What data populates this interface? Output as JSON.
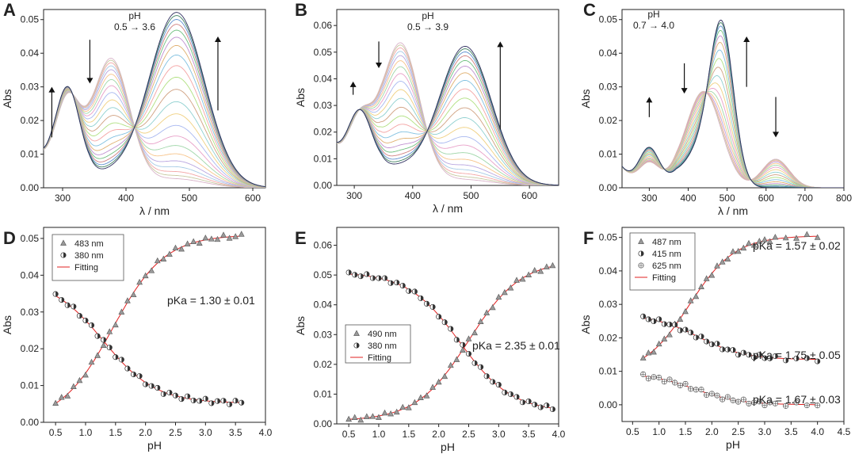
{
  "figure": {
    "panels": [
      {
        "letter": "A",
        "kind": "spectra",
        "xlabel": "λ / nm",
        "ylabel": "Abs",
        "xlim": [
          270,
          620
        ],
        "ylim": [
          0,
          0.053
        ],
        "xticks": [
          300,
          400,
          500,
          600
        ],
        "xtick_labels": [
          "300",
          "400",
          "500",
          "600"
        ],
        "yticks": [
          0,
          0.01,
          0.02,
          0.03,
          0.04,
          0.05
        ],
        "ytick_labels": [
          "0.00",
          "0.01",
          "0.02",
          "0.03",
          "0.04",
          "0.05"
        ],
        "ph_label": "pH",
        "ph_range": "0.5 → 3.6",
        "curve_count": 22,
        "acid": [
          {
            "c": 308,
            "w": 19,
            "a": 0.022
          },
          {
            "c": 377,
            "w": 29,
            "a": 0.0365
          },
          {
            "c": 480,
            "w": 44,
            "a": 0.0025
          }
        ],
        "base": [
          {
            "c": 308,
            "w": 19,
            "a": 0.026
          },
          {
            "c": 377,
            "w": 29,
            "a": 0.0015
          },
          {
            "c": 480,
            "w": 44,
            "a": 0.052
          }
        ],
        "baseline": 0.0075,
        "arrows": [
          {
            "x": 283,
            "y1": 0.015,
            "y2": 0.03
          },
          {
            "x": 343,
            "y1": 0.044,
            "y2": 0.031
          },
          {
            "x": 545,
            "y1": 0.023,
            "y2": 0.045
          }
        ]
      },
      {
        "letter": "B",
        "kind": "spectra",
        "xlabel": "λ / nm",
        "ylabel": "Abs",
        "xlim": [
          270,
          650
        ],
        "ylim": [
          0,
          0.066
        ],
        "xticks": [
          300,
          400,
          500,
          600
        ],
        "xtick_labels": [
          "300",
          "400",
          "500",
          "600"
        ],
        "yticks": [
          0,
          0.01,
          0.02,
          0.03,
          0.04,
          0.05,
          0.06
        ],
        "ytick_labels": [
          "0.00",
          "0.01",
          "0.02",
          "0.03",
          "0.04",
          "0.05",
          "0.06"
        ],
        "ph_label": "pH",
        "ph_range": "0.5 → 3.9",
        "curve_count": 22,
        "acid": [
          {
            "c": 310,
            "w": 20,
            "a": 0.018
          },
          {
            "c": 380,
            "w": 32,
            "a": 0.0505
          },
          {
            "c": 490,
            "w": 45,
            "a": 0.002
          }
        ],
        "base": [
          {
            "c": 310,
            "w": 20,
            "a": 0.022
          },
          {
            "c": 380,
            "w": 32,
            "a": 0.003
          },
          {
            "c": 490,
            "w": 45,
            "a": 0.052
          }
        ],
        "baseline": 0.012,
        "arrows": [
          {
            "x": 298,
            "y1": 0.034,
            "y2": 0.039
          },
          {
            "x": 342,
            "y1": 0.054,
            "y2": 0.044
          },
          {
            "x": 550,
            "y1": 0.021,
            "y2": 0.054
          }
        ]
      },
      {
        "letter": "C",
        "kind": "spectra",
        "xlabel": "λ / nm",
        "ylabel": "Abs",
        "xlim": [
          230,
          800
        ],
        "ylim": [
          0,
          0.053
        ],
        "xticks": [
          300,
          400,
          500,
          600,
          700,
          800
        ],
        "xtick_labels": [
          "300",
          "400",
          "500",
          "600",
          "700",
          "800"
        ],
        "yticks": [
          0,
          0.01,
          0.02,
          0.03,
          0.04,
          0.05
        ],
        "ytick_labels": [
          "0.00",
          "0.01",
          "0.02",
          "0.03",
          "0.04",
          "0.05"
        ],
        "ph_label": "pH",
        "ph_range": "0.7 → 4.0",
        "curve_count": 18,
        "acid": [
          {
            "c": 300,
            "w": 25,
            "a": 0.006
          },
          {
            "c": 440,
            "w": 45,
            "a": 0.028
          },
          {
            "c": 487,
            "w": 30,
            "a": 0.0
          },
          {
            "c": 625,
            "w": 35,
            "a": 0.0085
          }
        ],
        "base": [
          {
            "c": 300,
            "w": 25,
            "a": 0.0105
          },
          {
            "c": 440,
            "w": 45,
            "a": 0.011
          },
          {
            "c": 487,
            "w": 30,
            "a": 0.043
          },
          {
            "c": 625,
            "w": 35,
            "a": 0.0
          }
        ],
        "baseline": 0.006,
        "arrows": [
          {
            "x": 300,
            "y1": 0.021,
            "y2": 0.027
          },
          {
            "x": 390,
            "y1": 0.037,
            "y2": 0.028
          },
          {
            "x": 550,
            "y1": 0.03,
            "y2": 0.045
          },
          {
            "x": 625,
            "y1": 0.027,
            "y2": 0.015
          }
        ]
      },
      {
        "letter": "D",
        "kind": "titration",
        "xlabel": "pH",
        "ylabel": "Abs",
        "xlim": [
          0.3,
          4.0
        ],
        "ylim": [
          0,
          0.053
        ],
        "xticks": [
          0.5,
          1.0,
          1.5,
          2.0,
          2.5,
          3.0,
          3.5,
          4.0
        ],
        "xtick_labels": [
          "0.5",
          "1.0",
          "1.5",
          "2.0",
          "2.5",
          "3.0",
          "3.5",
          "4.0"
        ],
        "yticks": [
          0,
          0.01,
          0.02,
          0.03,
          0.04,
          0.05
        ],
        "ytick_labels": [
          "0.00",
          "0.01",
          "0.02",
          "0.03",
          "0.04",
          "0.05"
        ],
        "legend": [
          "483 nm",
          "380 nm",
          "Fitting"
        ],
        "pka_labels": [
          "pKa = 1.30 ± 0.01"
        ],
        "ph_points": [
          0.5,
          0.6,
          0.7,
          0.8,
          0.9,
          1.0,
          1.1,
          1.2,
          1.3,
          1.4,
          1.5,
          1.6,
          1.7,
          1.8,
          1.9,
          2.0,
          2.1,
          2.2,
          2.3,
          2.4,
          2.5,
          2.6,
          2.7,
          2.8,
          2.9,
          3.0,
          3.1,
          3.2,
          3.3,
          3.4,
          3.5,
          3.6
        ],
        "series": [
          {
            "name": "483 nm",
            "marker": "triangle",
            "pka": 1.45,
            "acid_abs": 0.0,
            "base_abs": 0.051
          },
          {
            "name": "380 nm",
            "marker": "half",
            "pka": 1.3,
            "acid_abs": 0.039,
            "base_abs": 0.0052
          }
        ]
      },
      {
        "letter": "E",
        "kind": "titration",
        "xlabel": "pH",
        "ylabel": "Abs",
        "xlim": [
          0.3,
          4.0
        ],
        "ylim": [
          0,
          0.066
        ],
        "xticks": [
          0.5,
          1.0,
          1.5,
          2.0,
          2.5,
          3.0,
          3.5,
          4.0
        ],
        "xtick_labels": [
          "0.5",
          "1.0",
          "1.5",
          "2.0",
          "2.5",
          "3.0",
          "3.5",
          "4.0"
        ],
        "yticks": [
          0,
          0.01,
          0.02,
          0.03,
          0.04,
          0.05,
          0.06
        ],
        "ytick_labels": [
          "0.00",
          "0.01",
          "0.02",
          "0.03",
          "0.04",
          "0.05",
          "0.06"
        ],
        "legend": [
          "490 nm",
          "380 nm",
          "Fitting"
        ],
        "pka_labels": [
          "pKa = 2.35 ± 0.01"
        ],
        "ph_points": [
          0.5,
          0.6,
          0.7,
          0.8,
          0.9,
          1.0,
          1.1,
          1.2,
          1.3,
          1.4,
          1.5,
          1.6,
          1.7,
          1.8,
          1.9,
          2.0,
          2.1,
          2.2,
          2.3,
          2.4,
          2.5,
          2.6,
          2.7,
          2.8,
          2.9,
          3.0,
          3.1,
          3.2,
          3.3,
          3.4,
          3.5,
          3.6,
          3.7,
          3.8,
          3.9
        ],
        "series": [
          {
            "name": "490 nm",
            "marker": "triangle",
            "pka": 2.5,
            "acid_abs": 0.001,
            "base_abs": 0.055
          },
          {
            "name": "380 nm",
            "marker": "half",
            "pka": 2.35,
            "acid_abs": 0.051,
            "base_abs": 0.004
          }
        ]
      },
      {
        "letter": "F",
        "kind": "titration",
        "xlabel": "pH",
        "ylabel": "Abs",
        "xlim": [
          0.3,
          4.5
        ],
        "ylim": [
          -0.005,
          0.053
        ],
        "xticks": [
          0.5,
          1.0,
          1.5,
          2.0,
          2.5,
          3.0,
          3.5,
          4.0,
          4.5
        ],
        "xtick_labels": [
          "0.5",
          "1.0",
          "1.5",
          "2.0",
          "2.5",
          "3.0",
          "3.5",
          "4.0",
          "4.5"
        ],
        "yticks": [
          0,
          0.01,
          0.02,
          0.03,
          0.04,
          0.05
        ],
        "ytick_labels": [
          "0.00",
          "0.01",
          "0.02",
          "0.03",
          "0.04",
          "0.05"
        ],
        "legend": [
          "487 nm",
          "415 nm",
          "625 nm",
          "Fitting"
        ],
        "pka_labels": [
          "pKa = 1.57 ± 0.02",
          "pKa = 1.75 ± 0.05",
          "pKa = 1.67 ± 0.03"
        ],
        "ph_points": [
          0.7,
          0.8,
          0.9,
          1.0,
          1.1,
          1.2,
          1.3,
          1.4,
          1.5,
          1.6,
          1.7,
          1.8,
          1.9,
          2.0,
          2.1,
          2.2,
          2.3,
          2.4,
          2.5,
          2.6,
          2.7,
          2.8,
          2.9,
          3.0,
          3.1,
          3.2,
          3.4,
          3.6,
          3.8,
          4.0
        ],
        "series": [
          {
            "name": "487 nm",
            "marker": "triangle",
            "pka": 1.57,
            "acid_abs": 0.009,
            "base_abs": 0.0505
          },
          {
            "name": "415 nm",
            "marker": "half",
            "pka": 1.75,
            "acid_abs": 0.027,
            "base_abs": 0.0135
          },
          {
            "name": "625 nm",
            "marker": "crossed",
            "pka": 1.67,
            "acid_abs": 0.0095,
            "base_abs": 0.0
          }
        ]
      }
    ]
  },
  "chart_data": [
    {
      "panel": "A",
      "type": "line",
      "title": "",
      "xlabel": "λ / nm",
      "ylabel": "Abs",
      "xlim": [
        270,
        620
      ],
      "ylim": [
        0,
        0.053
      ],
      "annotation": "pH 0.5 → 3.6",
      "peaks_nm": [
        308,
        377,
        480
      ],
      "peak_abs": {
        "308": [
          0.022,
          0.026
        ],
        "377": [
          0.0365,
          0.0015
        ],
        "480": [
          0.0025,
          0.052
        ]
      }
    },
    {
      "panel": "B",
      "type": "line",
      "title": "",
      "xlabel": "λ / nm",
      "ylabel": "Abs",
      "xlim": [
        270,
        650
      ],
      "ylim": [
        0,
        0.066
      ],
      "annotation": "pH 0.5 → 3.9",
      "peaks_nm": [
        310,
        380,
        490
      ],
      "peak_abs": {
        "310": [
          0.018,
          0.022
        ],
        "380": [
          0.0505,
          0.003
        ],
        "490": [
          0.002,
          0.052
        ]
      }
    },
    {
      "panel": "C",
      "type": "line",
      "title": "",
      "xlabel": "λ / nm",
      "ylabel": "Abs",
      "xlim": [
        230,
        800
      ],
      "ylim": [
        0,
        0.053
      ],
      "annotation": "pH 0.7 → 4.0",
      "peaks_nm": [
        300,
        440,
        487,
        625
      ],
      "peak_abs": {
        "300": [
          0.006,
          0.0105
        ],
        "440": [
          0.028,
          0.011
        ],
        "487": [
          0.0,
          0.043
        ],
        "625": [
          0.0085,
          0.0
        ]
      }
    },
    {
      "panel": "D",
      "type": "scatter",
      "xlabel": "pH",
      "ylabel": "Abs",
      "xlim": [
        0.3,
        4.0
      ],
      "ylim": [
        0,
        0.053
      ],
      "series": [
        {
          "name": "483 nm",
          "pKa": 1.45
        },
        {
          "name": "380 nm",
          "pKa": 1.3
        }
      ],
      "annotations": [
        "pKa = 1.30 ± 0.01"
      ]
    },
    {
      "panel": "E",
      "type": "scatter",
      "xlabel": "pH",
      "ylabel": "Abs",
      "xlim": [
        0.3,
        4.0
      ],
      "ylim": [
        0,
        0.066
      ],
      "series": [
        {
          "name": "490 nm",
          "pKa": 2.5
        },
        {
          "name": "380 nm",
          "pKa": 2.35
        }
      ],
      "annotations": [
        "pKa = 2.35 ± 0.01"
      ]
    },
    {
      "panel": "F",
      "type": "scatter",
      "xlabel": "pH",
      "ylabel": "Abs",
      "xlim": [
        0.3,
        4.5
      ],
      "ylim": [
        -0.005,
        0.053
      ],
      "series": [
        {
          "name": "487 nm",
          "pKa": 1.57
        },
        {
          "name": "415 nm",
          "pKa": 1.75
        },
        {
          "name": "625 nm",
          "pKa": 1.67
        }
      ],
      "annotations": [
        "pKa = 1.57 ± 0.02",
        "pKa = 1.75 ± 0.05",
        "pKa = 1.67 ± 0.03"
      ]
    }
  ]
}
